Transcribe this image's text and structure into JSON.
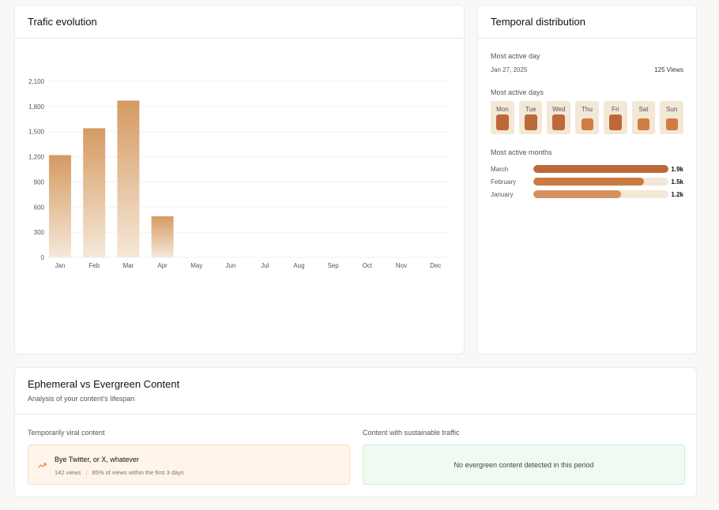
{
  "traffic": {
    "title": "Trafic evolution",
    "chart_data": {
      "type": "bar",
      "categories": [
        "Jan",
        "Feb",
        "Mar",
        "Apr",
        "May",
        "Jun",
        "Jul",
        "Aug",
        "Sep",
        "Oct",
        "Nov",
        "Dec"
      ],
      "values": [
        1220,
        1540,
        1870,
        490,
        0,
        0,
        0,
        0,
        0,
        0,
        0,
        0
      ],
      "yticks": [
        "0",
        "300",
        "600",
        "900",
        "1,200",
        "1,500",
        "1,800",
        "2,100"
      ],
      "ylim": [
        0,
        2100
      ],
      "grid": true,
      "colors": {
        "top": "#d59a62",
        "bottom": "#f5e8d8"
      }
    }
  },
  "temporal": {
    "title": "Temporal distribution",
    "most_active_day_label": "Most active day",
    "most_active_day_date": "Jan 27, 2025",
    "most_active_day_views": "125 Views",
    "most_active_days_label": "Most active days",
    "days": [
      {
        "label": "Mon",
        "level": "high"
      },
      {
        "label": "Tue",
        "level": "high"
      },
      {
        "label": "Wed",
        "level": "high"
      },
      {
        "label": "Thu",
        "level": "medium"
      },
      {
        "label": "Fri",
        "level": "high"
      },
      {
        "label": "Sat",
        "level": "medium"
      },
      {
        "label": "Sun",
        "level": "medium"
      }
    ],
    "most_active_months_label": "Most active months",
    "months": [
      {
        "name": "March",
        "value": "1.9k",
        "fraction": 1.0,
        "color": "#bd6839"
      },
      {
        "name": "February",
        "value": "1.5k",
        "fraction": 0.82,
        "color": "#cb7a43"
      },
      {
        "name": "January",
        "value": "1.2k",
        "fraction": 0.65,
        "color": "#d6925e"
      }
    ]
  },
  "lifespan": {
    "title": "Ephemeral vs Evergreen Content",
    "subtitle": "Analysis of your content's lifespan",
    "viral_label": "Temporarily viral content",
    "viral_item": {
      "title": "Bye Twitter, or X, whatever",
      "views": "142 views",
      "separator": "|",
      "detail": "85% of views within the first 3 days",
      "icon": "trending-up-icon"
    },
    "evergreen_label": "Content with sustainable traffic",
    "evergreen_empty": "No evergreen content detected in this period"
  }
}
